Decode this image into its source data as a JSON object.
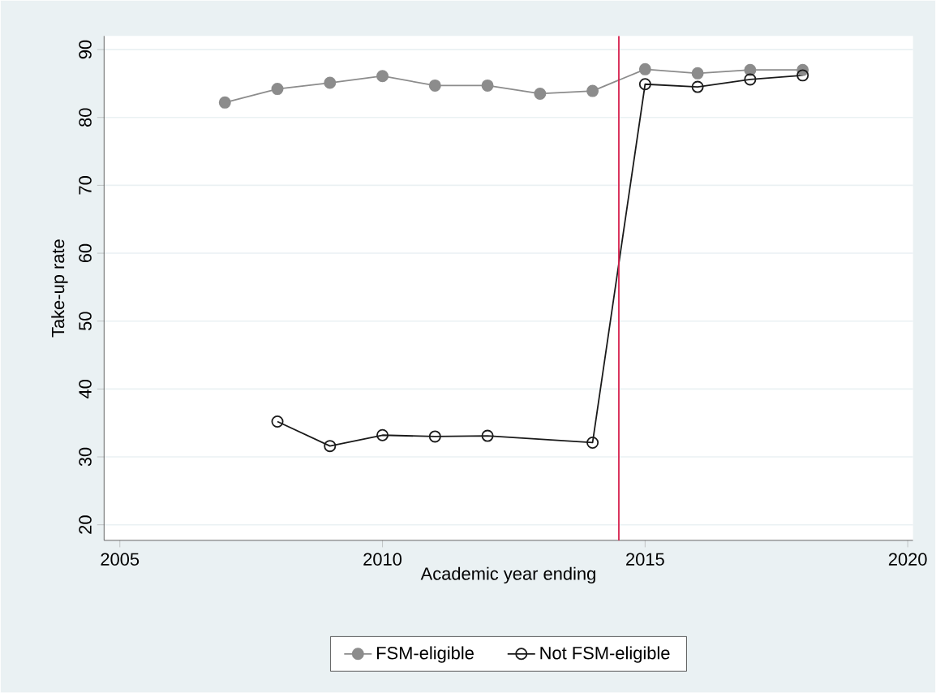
{
  "chart_data": {
    "type": "line",
    "xlabel": "Academic year ending",
    "ylabel": "Take-up rate",
    "xlim": [
      2004.7,
      2020.1
    ],
    "xticks": [
      2005,
      2010,
      2015,
      2020
    ],
    "ylim": [
      17.7,
      92
    ],
    "yticks": [
      20,
      30,
      40,
      50,
      60,
      70,
      80,
      90
    ],
    "grid": "y",
    "legend": "bottom",
    "ref_lines": [
      {
        "axis": "x",
        "value": 2014.5,
        "color": "#d6204e"
      }
    ],
    "series": [
      {
        "name": "FSM-eligible",
        "color": "#8c8c8c",
        "marker": "circle",
        "x": [
          2007,
          2008,
          2009,
          2010,
          2011,
          2012,
          2013,
          2014,
          2015,
          2016,
          2017,
          2018
        ],
        "values": [
          82.2,
          84.2,
          85.1,
          86.1,
          84.7,
          84.7,
          83.5,
          83.9,
          87.1,
          86.5,
          87.0,
          87.0
        ]
      },
      {
        "name": "Not FSM-eligible",
        "color": "#1a1a1a",
        "marker": "hollow circle",
        "x": [
          2008,
          2009,
          2010,
          2011,
          2012,
          2014,
          2015,
          2016,
          2017,
          2018
        ],
        "values": [
          35.2,
          31.6,
          33.2,
          33.0,
          33.1,
          32.1,
          84.9,
          84.5,
          85.6,
          86.2
        ]
      }
    ]
  }
}
